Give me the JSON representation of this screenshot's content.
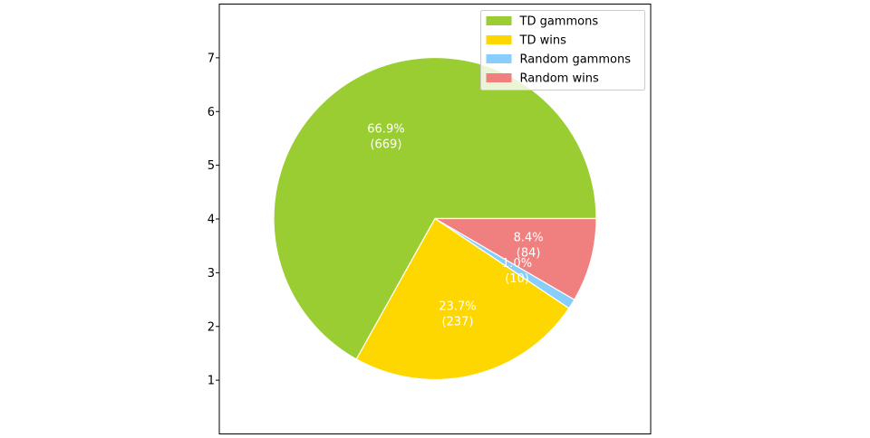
{
  "chart_data": {
    "type": "pie",
    "title": "",
    "labels": [
      "TD gammons",
      "TD wins",
      "Random gammons",
      "Random wins"
    ],
    "values": [
      669,
      237,
      10,
      84
    ],
    "percent_labels": [
      "66.9%",
      "23.7%",
      "1.0%",
      "8.4%"
    ],
    "count_labels": [
      "(669)",
      "(237)",
      "(10)",
      "(84)"
    ],
    "colors": [
      "#9acd32",
      "#ffd700",
      "#87cefa",
      "#f08080"
    ],
    "start_angle_deg": 0,
    "direction": "counterclockwise",
    "wedge_edge_color": "#ffffff",
    "label_color": "#ffffff",
    "yticks": [
      "1",
      "2",
      "3",
      "4",
      "5",
      "6",
      "7"
    ],
    "ytick_values": [
      1,
      2,
      3,
      4,
      5,
      6,
      7
    ],
    "ylim": [
      0,
      8
    ],
    "legend_position": "upper right",
    "grid": false
  }
}
